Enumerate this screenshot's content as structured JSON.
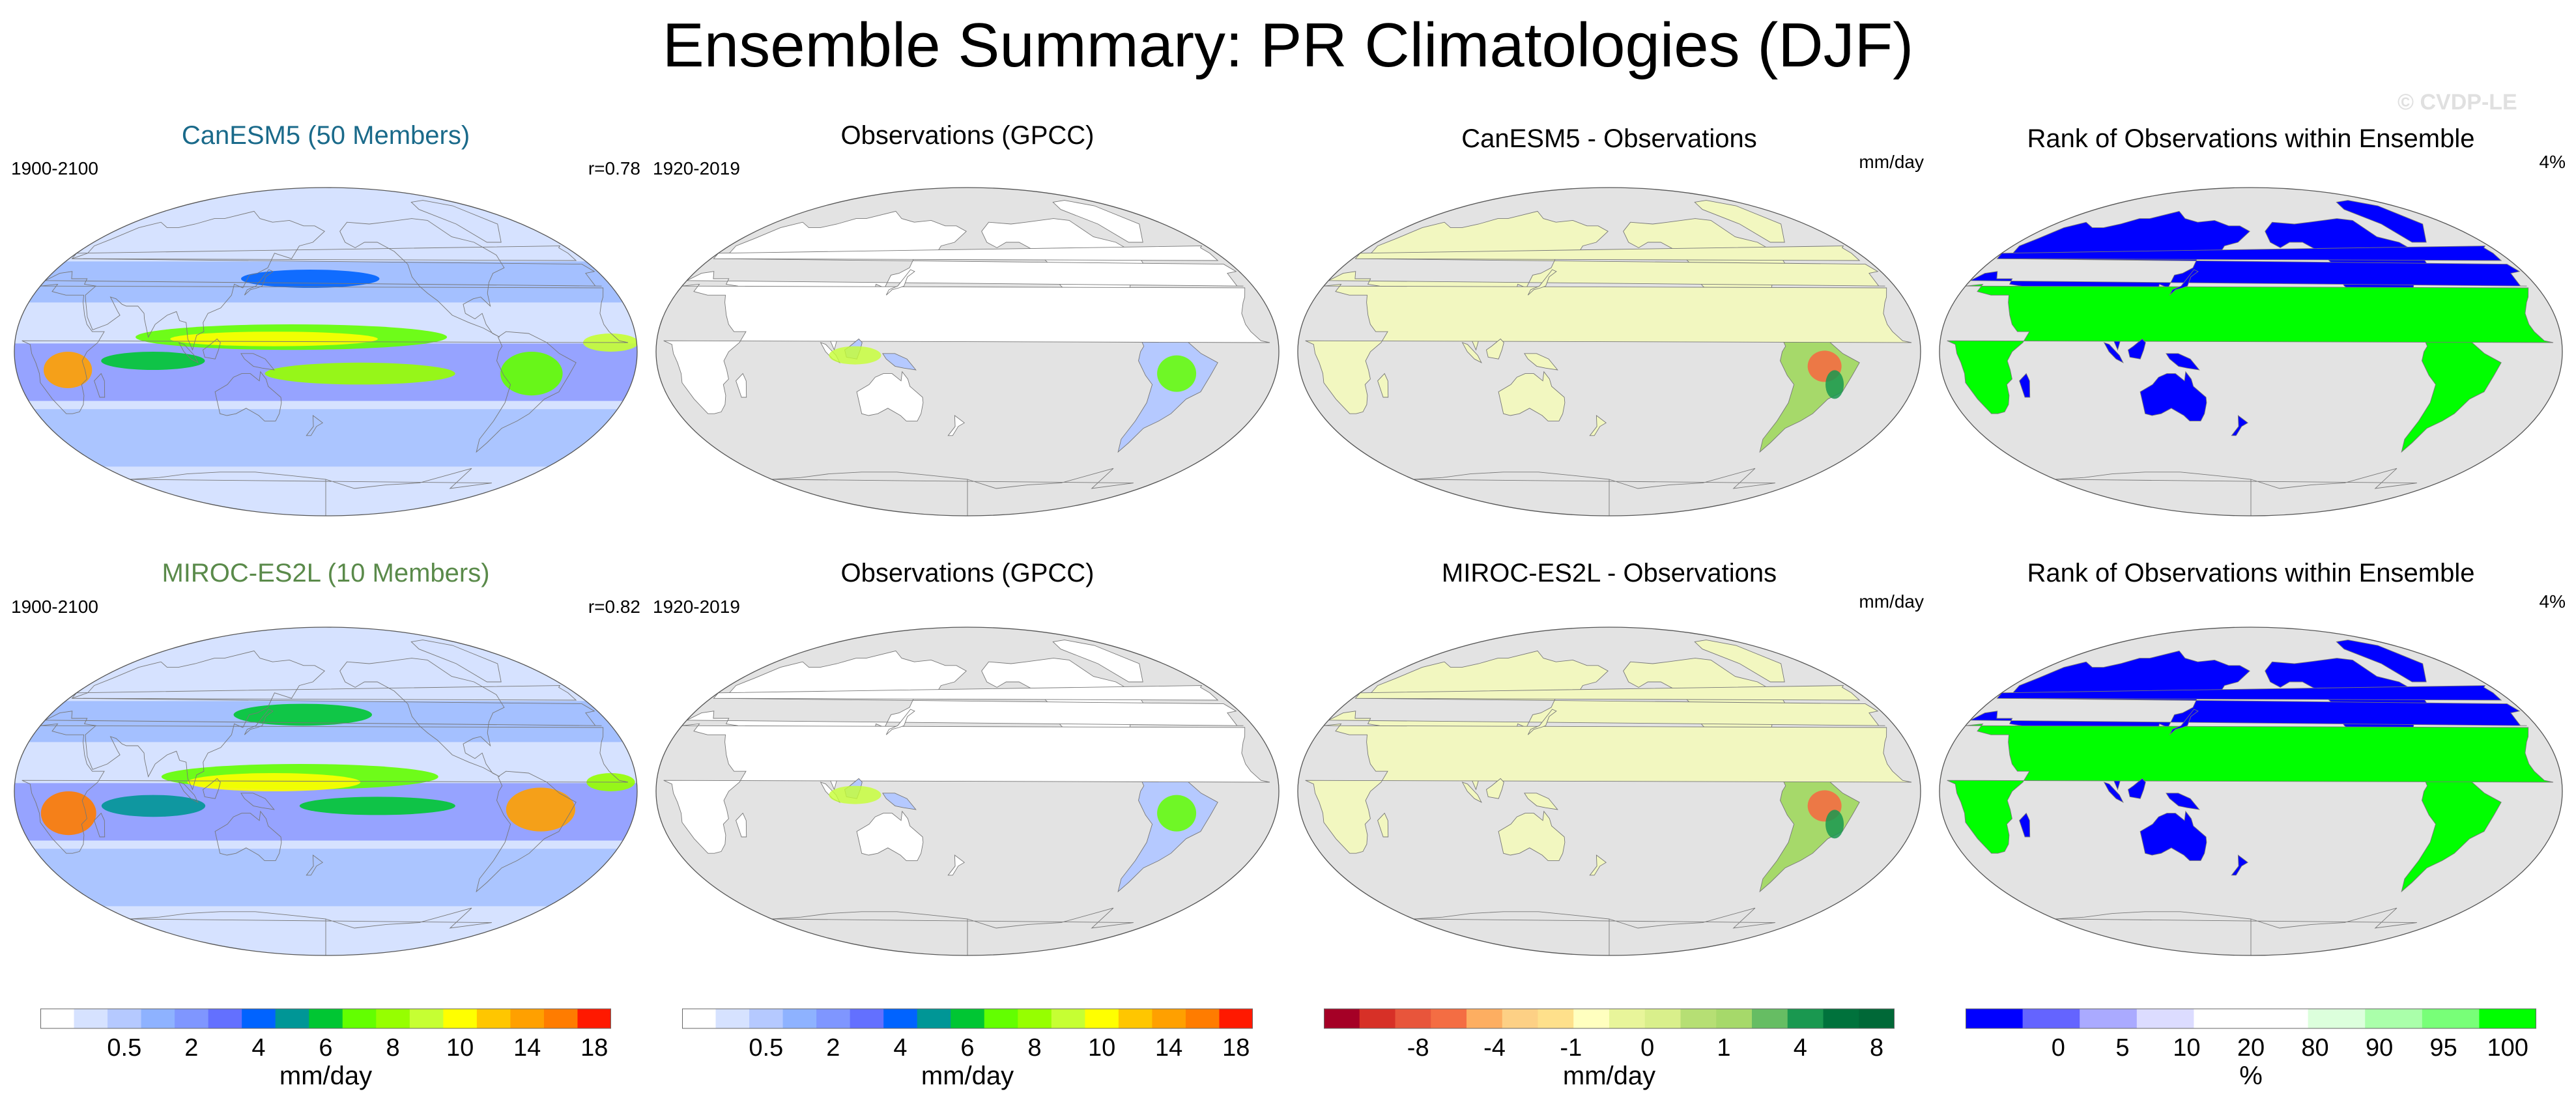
{
  "figure": {
    "title": "Ensemble Summary: PR Climatologies (DJF)",
    "watermark": "© CVDP-LE"
  },
  "rows": [
    {
      "model_title": "CanESM5 (50 Members)",
      "model_title_color": "#1a6a8a",
      "model_years": "1900-2100",
      "pattern_corr": "r=0.78",
      "obs_title": "Observations (GPCC)",
      "obs_years": "1920-2019",
      "diff_title": "CanESM5 - Observations",
      "diff_units": "mm/day",
      "rank_title": "Rank of Observations within Ensemble",
      "rank_pct": "4%"
    },
    {
      "model_title": "MIROC-ES2L (10 Members)",
      "model_title_color": "#5a8a4a",
      "model_years": "1900-2100",
      "pattern_corr": "r=0.82",
      "obs_title": "Observations (GPCC)",
      "obs_years": "1920-2019",
      "diff_title": "MIROC-ES2L - Observations",
      "diff_units": "mm/day",
      "rank_title": "Rank of Observations within Ensemble",
      "rank_pct": "4%"
    }
  ],
  "colorbars": {
    "precip": {
      "unit": "mm/day",
      "colors": [
        "#ffffff",
        "#d6e2ff",
        "#b5c9ff",
        "#8eb2ff",
        "#7f96ff",
        "#6370ff",
        "#0063ff",
        "#009696",
        "#00c633",
        "#63ff00",
        "#96ff00",
        "#c6ff33",
        "#ffff00",
        "#ffc600",
        "#ffa000",
        "#ff7c00",
        "#ff1900"
      ],
      "ticks": [
        "0.5",
        "2",
        "4",
        "6",
        "8",
        "10",
        "14",
        "18"
      ]
    },
    "diff": {
      "unit": "mm/day",
      "colors": [
        "#a50026",
        "#d73027",
        "#e8553b",
        "#f46d43",
        "#fdae61",
        "#fdd085",
        "#fee08b",
        "#ffffbf",
        "#e8f59a",
        "#d9ef8b",
        "#b6df74",
        "#a6d96a",
        "#66bd63",
        "#1a9850",
        "#00723c",
        "#006837"
      ],
      "ticks": [
        "-8",
        "-4",
        "-1",
        "0",
        "1",
        "4",
        "8"
      ]
    },
    "rank": {
      "unit": "%",
      "colors": [
        "#0000ff",
        "#6464ff",
        "#aaaaff",
        "#dcdcff",
        "#ffffff",
        "#ffffff",
        "#dcffdc",
        "#aaffaa",
        "#78ff78",
        "#00ff00"
      ],
      "ticks": [
        "0",
        "5",
        "10",
        "20",
        "80",
        "90",
        "95",
        "100"
      ]
    }
  }
}
